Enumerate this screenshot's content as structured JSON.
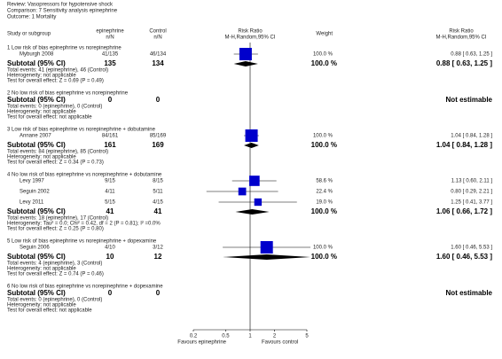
{
  "header": {
    "review": "Review:  Vasopressors for hypotensive shock",
    "comparison": "Comparison:  7 Sensitivity analysis epinephrine",
    "outcome": "Outcome:  1 Mortality"
  },
  "columns": {
    "study": "Study or subgroup",
    "group_a": "epinephrine",
    "group_a_unit": "n/N",
    "group_b": "Control",
    "group_b_unit": "n/N",
    "plot": "Risk Ratio",
    "plot_method": "M-H,Random,95% CI",
    "weight": "Weight",
    "estimate": "Risk Ratio",
    "estimate_method": "M-H,Random,95% CI"
  },
  "chart_data": {
    "type": "forest",
    "log_scale": true,
    "xlim": [
      0.2,
      5
    ],
    "xticks": [
      0.2,
      0.5,
      1,
      2,
      5
    ],
    "favours_left": "Favours epinephrine",
    "favours_right": "Favours control",
    "color": "#0000cc",
    "groups": [
      {
        "title": "1 Low risk of bias epinephrine vs norepinephrine",
        "studies": [
          {
            "name": "Myburgh 2008",
            "events_a": "41/135",
            "events_b": "46/134",
            "weight": 100.0,
            "weight_label": "100.0 %",
            "rr": 0.88,
            "ci_low": 0.63,
            "ci_high": 1.25,
            "ci_label": "0.88 [ 0.63, 1.25 ]"
          }
        ],
        "subtotal": {
          "label": "Subtotal (95% CI)",
          "total_a": 135,
          "total_b": 134,
          "weight": 100.0,
          "weight_label": "100.0 %",
          "rr": 0.88,
          "ci_low": 0.63,
          "ci_high": 1.25,
          "ci_label": "0.88 [ 0.63, 1.25 ]"
        },
        "total_events": "Total events: 41 (epinephrine), 46 (Control)",
        "heterogeneity": "Heterogeneity: not applicable",
        "test": "Test for overall effect: Z = 0.69 (P = 0.49)"
      },
      {
        "title": "2 No low risk of bias epinephrine vs norepinephrine",
        "studies": [],
        "subtotal": {
          "label": "Subtotal (95% CI)",
          "total_a": 0,
          "total_b": 0,
          "ci_label": "Not estimable"
        },
        "total_events": "Total events: 0 (epinephrine), 0 (Control)",
        "heterogeneity": "Heterogeneity: not applicable",
        "test": "Test for overall effect: not applicable"
      },
      {
        "title": "3 Low risk of bias epinephrine vs norepinephrine + dobutamine",
        "studies": [
          {
            "name": "Annane 2007",
            "events_a": "84/161",
            "events_b": "85/169",
            "weight": 100.0,
            "weight_label": "100.0 %",
            "rr": 1.04,
            "ci_low": 0.84,
            "ci_high": 1.28,
            "ci_label": "1.04 [ 0.84, 1.28 ]"
          }
        ],
        "subtotal": {
          "label": "Subtotal (95% CI)",
          "total_a": 161,
          "total_b": 169,
          "weight": 100.0,
          "weight_label": "100.0 %",
          "rr": 1.04,
          "ci_low": 0.84,
          "ci_high": 1.28,
          "ci_label": "1.04 [ 0.84, 1.28 ]"
        },
        "total_events": "Total events: 84 (epinephrine), 85 (Control)",
        "heterogeneity": "Heterogeneity: not applicable",
        "test": "Test for overall effect: Z = 0.34 (P = 0.73)"
      },
      {
        "title": "4 No low risk of bias epinephrine vs norepinephrine + dobutamine",
        "studies": [
          {
            "name": "Levy 1997",
            "events_a": "9/15",
            "events_b": "8/15",
            "weight": 58.6,
            "weight_label": "58.6 %",
            "rr": 1.13,
            "ci_low": 0.6,
            "ci_high": 2.11,
            "ci_label": "1.13 [ 0.60, 2.11 ]"
          },
          {
            "name": "Seguin 2002",
            "events_a": "4/11",
            "events_b": "5/11",
            "weight": 22.4,
            "weight_label": "22.4 %",
            "rr": 0.8,
            "ci_low": 0.29,
            "ci_high": 2.21,
            "ci_label": "0.80 [ 0.29, 2.21 ]"
          },
          {
            "name": "Levy 2011",
            "events_a": "5/15",
            "events_b": "4/15",
            "weight": 19.0,
            "weight_label": "19.0 %",
            "rr": 1.25,
            "ci_low": 0.41,
            "ci_high": 3.77,
            "ci_label": "1.25 [ 0.41, 3.77 ]"
          }
        ],
        "subtotal": {
          "label": "Subtotal (95% CI)",
          "total_a": 41,
          "total_b": 41,
          "weight": 100.0,
          "weight_label": "100.0 %",
          "rr": 1.06,
          "ci_low": 0.66,
          "ci_high": 1.72,
          "ci_label": "1.06 [ 0.66, 1.72 ]"
        },
        "total_events": "Total events: 18 (epinephrine), 17 (Control)",
        "heterogeneity": "Heterogeneity: Tau² = 0.0; Chi² = 0.42, df = 2 (P = 0.81); I² =0.0%",
        "test": "Test for overall effect: Z = 0.25 (P = 0.80)"
      },
      {
        "title": "5 Low risk of bias epinephrine vs norepinephrine + dopexamine",
        "studies": [
          {
            "name": "Seguin 2006",
            "events_a": "4/10",
            "events_b": "3/12",
            "weight": 100.0,
            "weight_label": "100.0 %",
            "rr": 1.6,
            "ci_low": 0.46,
            "ci_high": 5.53,
            "ci_label": "1.60 [ 0.46, 5.53 ]"
          }
        ],
        "subtotal": {
          "label": "Subtotal (95% CI)",
          "total_a": 10,
          "total_b": 12,
          "weight": 100.0,
          "weight_label": "100.0 %",
          "rr": 1.6,
          "ci_low": 0.46,
          "ci_high": 5.53,
          "ci_label": "1.60 [ 0.46, 5.53 ]"
        },
        "total_events": "Total events: 4 (epinephrine), 3 (Control)",
        "heterogeneity": "Heterogeneity: not applicable",
        "test": "Test for overall effect: Z = 0.74 (P = 0.46)"
      },
      {
        "title": "6 No low risk of bias epinephrine vs norepinephrine + dopexamine",
        "studies": [],
        "subtotal": {
          "label": "Subtotal (95% CI)",
          "total_a": 0,
          "total_b": 0,
          "ci_label": "Not estimable"
        },
        "total_events": "Total events: 0 (epinephrine), 0 (Control)",
        "heterogeneity": "Heterogeneity: not applicable",
        "test": "Test for overall effect: not applicable"
      }
    ]
  }
}
